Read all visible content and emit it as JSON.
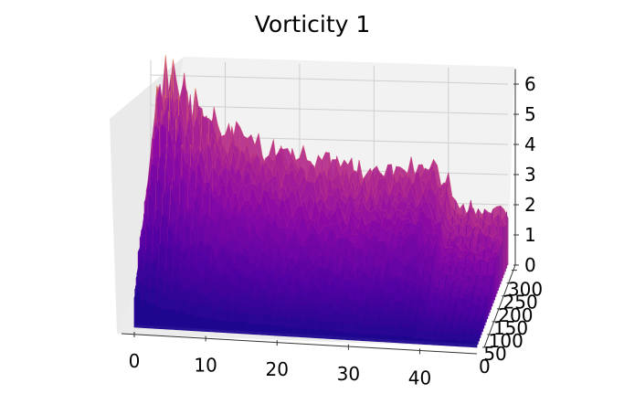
{
  "chart_data": {
    "type": "surface3d",
    "title": "Vorticity 1",
    "xlabel": "",
    "ylabel": "",
    "zlabel": "",
    "x_ticks": [
      0,
      10,
      20,
      30,
      40
    ],
    "y_ticks": [
      0,
      50,
      100,
      150,
      200,
      250,
      300
    ],
    "z_ticks": [
      0,
      1,
      2,
      3,
      4,
      5,
      6
    ],
    "xlim": [
      0,
      48
    ],
    "ylim": [
      0,
      320
    ],
    "zlim": [
      0,
      6.5
    ],
    "colormap": "plasma",
    "grid": true,
    "profile_x": [
      0,
      1,
      2,
      3,
      4,
      5,
      6,
      8,
      10,
      14,
      20,
      25,
      30,
      38,
      40,
      41,
      45,
      48
    ],
    "profile_back_z": [
      3.0,
      5.6,
      6.1,
      6.3,
      6.0,
      5.6,
      5.0,
      4.6,
      4.2,
      3.8,
      3.4,
      3.2,
      3.0,
      3.3,
      2.7,
      2.0,
      1.8,
      1.8
    ],
    "profile_front_z": [
      1.2,
      1.0,
      0.9,
      0.8,
      0.7,
      0.6,
      0.6,
      0.5,
      0.45,
      0.4,
      0.3,
      0.3,
      0.25,
      0.25,
      0.2,
      0.2,
      0.2,
      0.2
    ]
  }
}
